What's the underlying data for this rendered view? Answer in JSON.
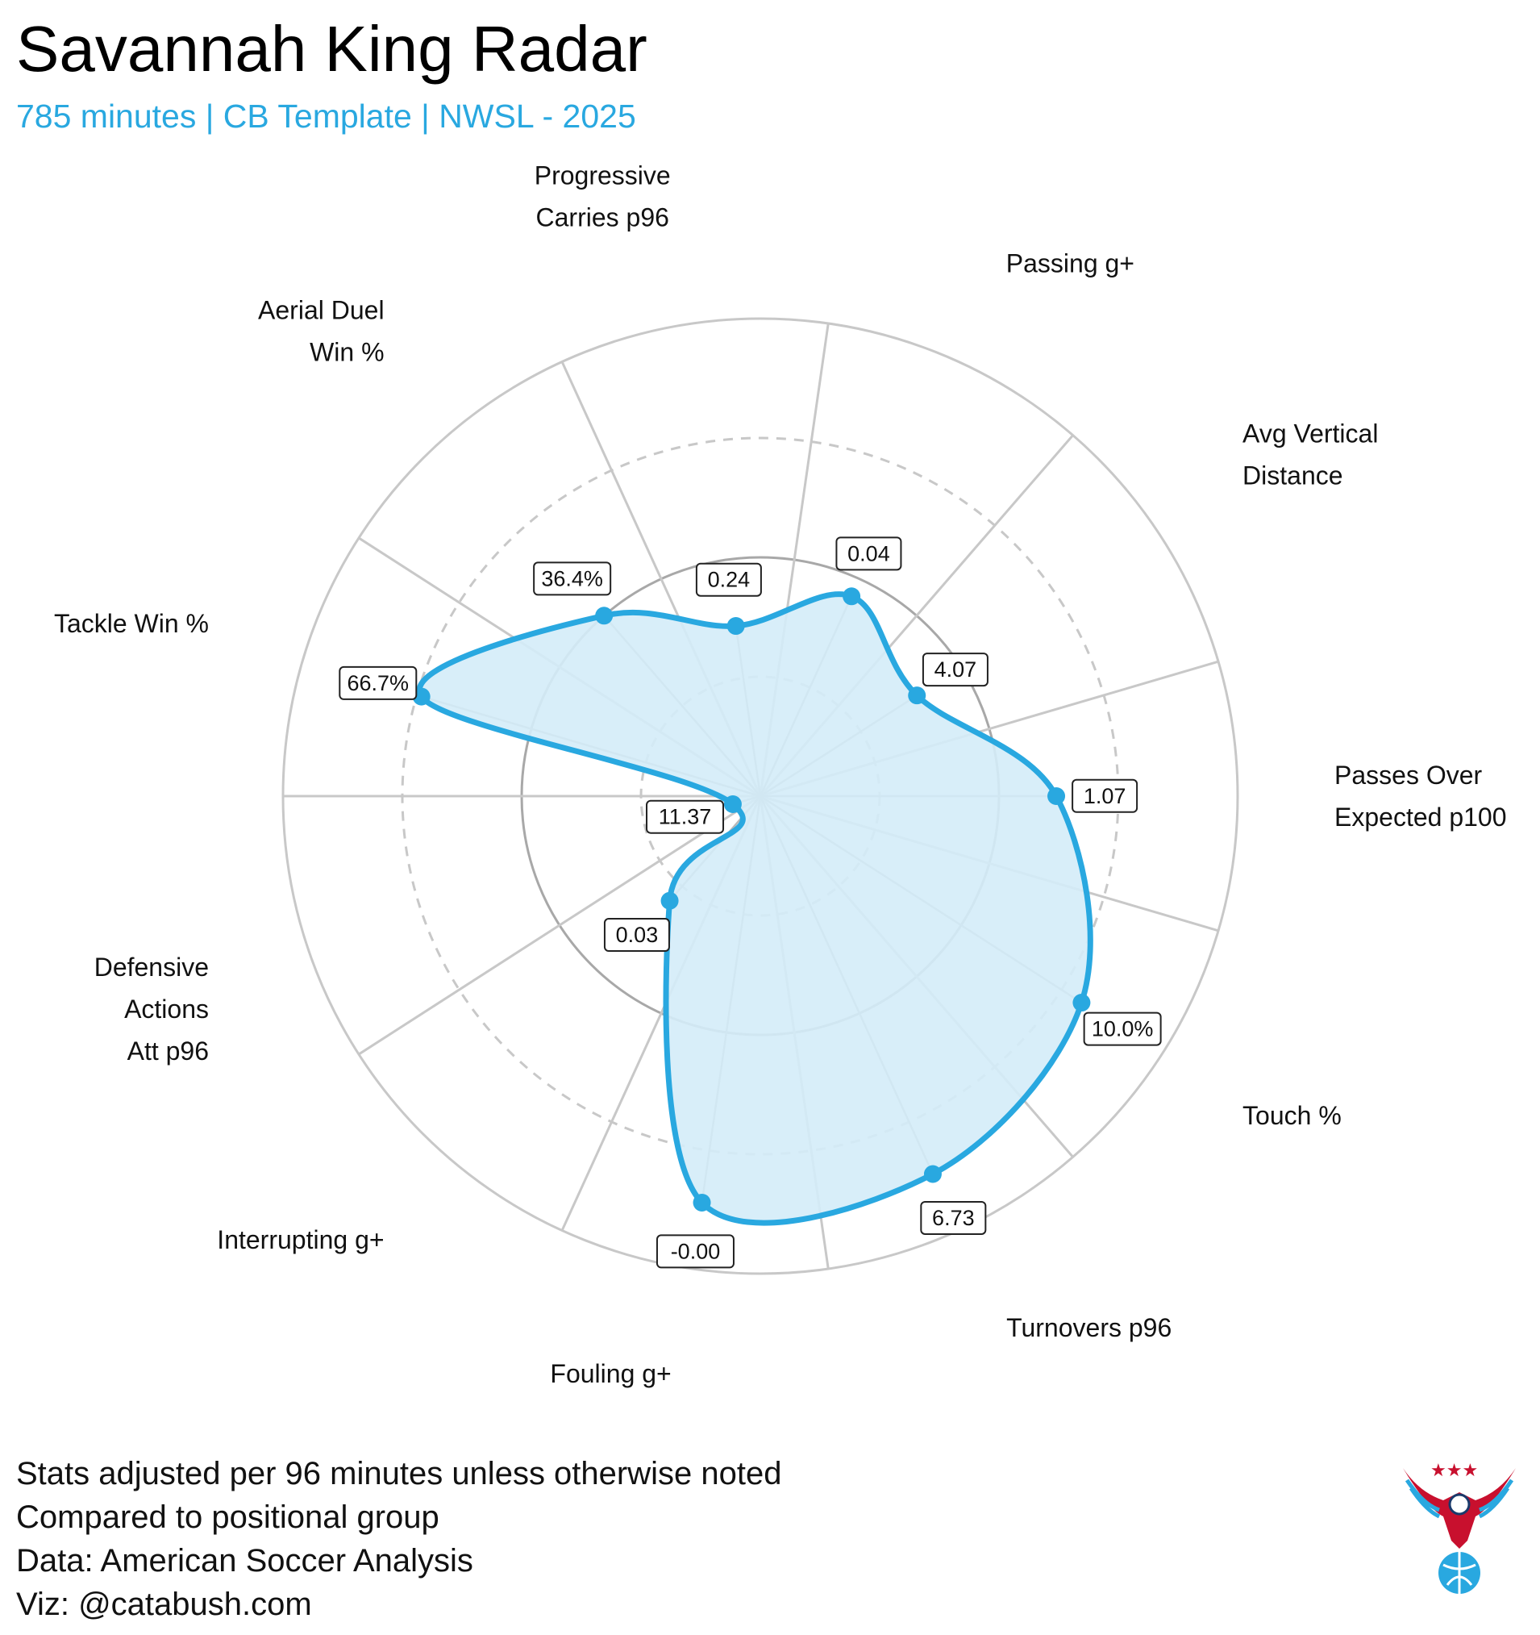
{
  "title": "Savannah King Radar",
  "subtitle": "785 minutes | CB Template | NWSL - 2025",
  "footer": [
    "Stats adjusted per 96 minutes unless otherwise noted",
    "Compared to positional group",
    "Data: American Soccer Analysis",
    "Viz: @catabush.com"
  ],
  "colors": {
    "accent": "#29a8e0",
    "fill": "#d4ecf8",
    "grid": "#c8c8c8",
    "mid_ring": "#a8a8a8"
  },
  "chart_data": {
    "type": "radar",
    "title": "Savannah King Radar",
    "range": [
      0,
      1
    ],
    "rings": [
      0.25,
      0.5,
      0.75,
      1.0
    ],
    "axes": [
      {
        "label": [
          "Passes Over",
          "Expected p100"
        ],
        "value_label": "1.07",
        "percentile": 0.62
      },
      {
        "label": [
          "Avg Vertical",
          "Distance"
        ],
        "value_label": "4.07",
        "percentile": 0.39
      },
      {
        "label": [
          "Passing g+"
        ],
        "value_label": "0.04",
        "percentile": 0.46
      },
      {
        "label": [
          "Progressive",
          "Carries p96"
        ],
        "value_label": "0.24",
        "percentile": 0.36
      },
      {
        "label": [
          "Aerial Duel",
          "Win %"
        ],
        "value_label": "36.4%",
        "percentile": 0.5
      },
      {
        "label": [
          "Tackle Win %"
        ],
        "value_label": "66.7%",
        "percentile": 0.74
      },
      {
        "label": [
          "Defensive",
          "Actions",
          "Att p96"
        ],
        "value_label": "11.37",
        "percentile": 0.06
      },
      {
        "label": [
          "Interrupting g+"
        ],
        "value_label": "0.03",
        "percentile": 0.29
      },
      {
        "label": [
          "Fouling g+"
        ],
        "value_label": "-0.00",
        "percentile": 0.86
      },
      {
        "label": [
          "Turnovers p96"
        ],
        "value_label": "6.73",
        "percentile": 0.87
      },
      {
        "label": [
          "Touch %"
        ],
        "value_label": "10.0%",
        "percentile": 0.8
      }
    ]
  }
}
